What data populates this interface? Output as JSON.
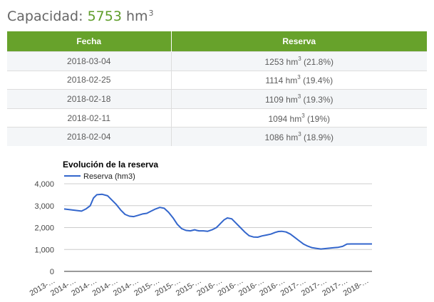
{
  "capacity": {
    "label": "Capacidad:",
    "value": "5753",
    "unit": "hm",
    "unit_exp": "3"
  },
  "table": {
    "headers": [
      "Fecha",
      "Reserva"
    ],
    "rows": [
      {
        "date": "2018-03-04",
        "value": "1253 hm",
        "exp": "3",
        "pct": " (21.8%)"
      },
      {
        "date": "2018-02-25",
        "value": "1114 hm",
        "exp": "3",
        "pct": " (19.4%)"
      },
      {
        "date": "2018-02-18",
        "value": "1109 hm",
        "exp": "3",
        "pct": " (19.3%)"
      },
      {
        "date": "2018-02-11",
        "value": "1094 hm",
        "exp": "3",
        "pct": " (19%)"
      },
      {
        "date": "2018-02-04",
        "value": "1086 hm",
        "exp": "3",
        "pct": " (18.9%)"
      }
    ]
  },
  "colors": {
    "header": "#67a22b",
    "capacity_value": "#5f9d2a",
    "series": "#3366cc"
  },
  "chart_data": {
    "type": "line",
    "title": "Evolución de la reserva",
    "legend": "top-left",
    "series": [
      {
        "name": "Reserva (hm3)",
        "x": [
          0,
          0.4,
          0.8,
          1.0,
          1.2,
          1.35,
          1.5,
          1.75,
          2.0,
          2.2,
          2.4,
          2.6,
          2.8,
          3.0,
          3.2,
          3.4,
          3.6,
          3.8,
          4.0,
          4.2,
          4.4,
          4.6,
          4.8,
          5.0,
          5.2,
          5.4,
          5.6,
          5.8,
          6.0,
          6.1,
          6.2,
          6.4,
          6.6,
          6.8,
          7.0,
          7.1,
          7.2,
          7.35,
          7.5,
          7.7,
          7.9,
          8.1,
          8.3,
          8.5,
          8.7,
          8.9,
          9.1,
          9.3,
          9.5,
          9.7,
          9.85,
          10.0,
          10.2,
          10.4,
          10.6,
          10.8,
          11.0,
          11.2,
          11.4,
          11.6,
          11.8,
          12.0,
          12.2,
          12.4,
          12.6,
          12.8,
          13.0,
          13.2,
          13.4,
          13.6,
          13.8,
          14.0,
          14.1,
          14.15
        ],
        "values": [
          2850,
          2800,
          2750,
          2850,
          3000,
          3350,
          3500,
          3520,
          3450,
          3250,
          3050,
          2800,
          2600,
          2520,
          2500,
          2560,
          2620,
          2650,
          2750,
          2850,
          2920,
          2880,
          2700,
          2450,
          2150,
          1950,
          1870,
          1850,
          1900,
          1870,
          1850,
          1850,
          1830,
          1900,
          2000,
          2100,
          2200,
          2350,
          2440,
          2400,
          2200,
          2000,
          1800,
          1630,
          1570,
          1560,
          1620,
          1660,
          1700,
          1780,
          1820,
          1830,
          1800,
          1700,
          1550,
          1400,
          1250,
          1150,
          1080,
          1050,
          1020,
          1040,
          1060,
          1080,
          1100,
          1140,
          1250,
          1253,
          1253,
          1253,
          1253,
          1253,
          1253,
          1253
        ]
      }
    ],
    "x_tick_labels": [
      "2013-…",
      "2014-…",
      "2014-…",
      "2014-…",
      "2014-…",
      "2015-…",
      "2015-…",
      "2015-…",
      "2016-…",
      "2016-…",
      "2016-…",
      "2016-…",
      "2017-…",
      "2017-…",
      "2017-…",
      "2018-…"
    ],
    "y_ticks": [
      "0",
      "1,000",
      "2,000",
      "3,000",
      "4,000"
    ],
    "ylim": [
      0,
      4000
    ],
    "grid": true
  }
}
